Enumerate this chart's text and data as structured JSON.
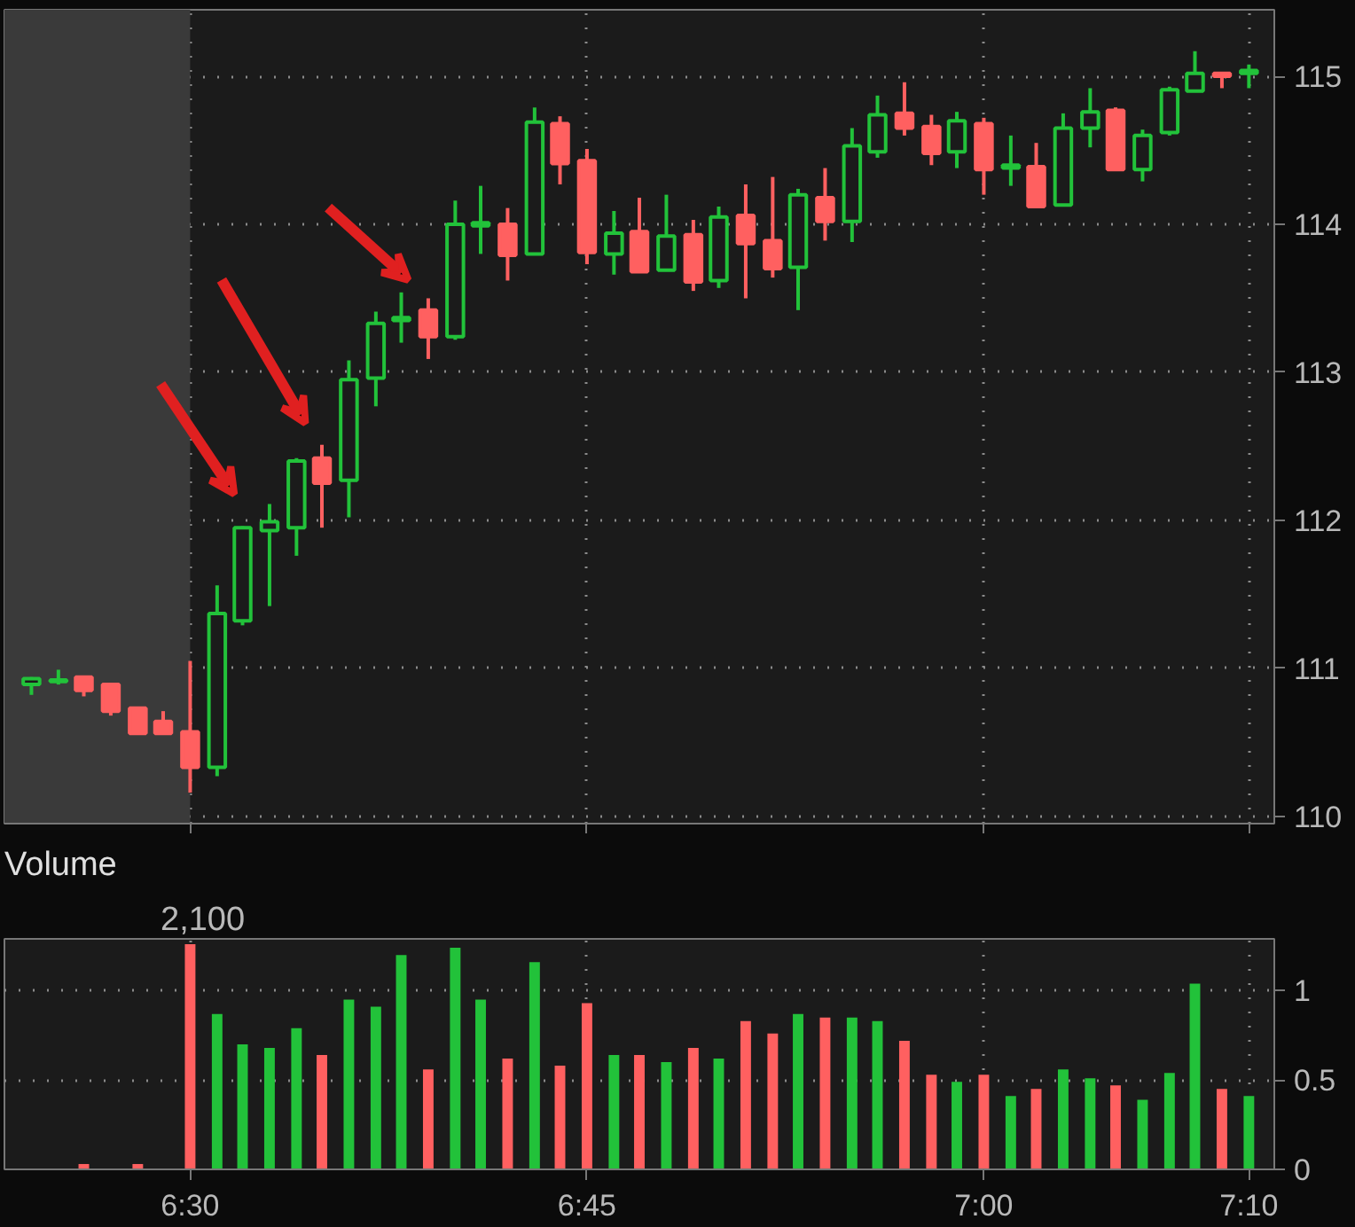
{
  "chart_data": [
    {
      "type": "candlestick",
      "x": [
        6.4,
        6.417,
        6.433,
        6.45,
        6.467,
        6.483,
        6.5,
        6.517,
        6.533,
        6.55,
        6.567,
        6.583,
        6.6,
        6.617,
        6.633,
        6.65,
        6.667,
        6.683,
        6.7,
        6.717,
        6.733,
        6.75,
        6.767,
        6.783,
        6.8,
        6.817,
        6.833,
        6.85,
        6.867,
        6.883,
        6.9,
        6.917,
        6.933,
        6.95,
        6.967,
        6.983,
        7.0,
        7.017,
        7.033,
        7.05,
        7.067,
        7.083,
        7.1,
        7.117,
        7.133,
        7.15,
        7.167
      ],
      "ohlc": [
        [
          110.89,
          110.94,
          110.82,
          110.93
        ],
        [
          110.91,
          110.99,
          110.89,
          110.92
        ],
        [
          110.94,
          110.95,
          110.81,
          110.85
        ],
        [
          110.89,
          110.89,
          110.68,
          110.71
        ],
        [
          110.73,
          110.73,
          110.56,
          110.56
        ],
        [
          110.64,
          110.71,
          110.56,
          110.56
        ],
        [
          110.57,
          111.05,
          110.16,
          110.33
        ],
        [
          110.33,
          111.56,
          110.27,
          111.37
        ],
        [
          111.32,
          111.96,
          111.29,
          111.95
        ],
        [
          111.93,
          112.11,
          111.42,
          111.99
        ],
        [
          111.95,
          112.42,
          111.76,
          112.4
        ],
        [
          112.42,
          112.51,
          111.95,
          112.25
        ],
        [
          112.27,
          113.08,
          112.02,
          112.95
        ],
        [
          112.96,
          113.41,
          112.77,
          113.33
        ],
        [
          113.35,
          113.54,
          113.2,
          113.37
        ],
        [
          113.42,
          113.5,
          113.09,
          113.24
        ],
        [
          113.24,
          114.16,
          113.22,
          114.0
        ],
        [
          113.99,
          114.26,
          113.8,
          114.01
        ],
        [
          114.0,
          114.11,
          113.62,
          113.79
        ],
        [
          113.8,
          114.79,
          113.8,
          114.69
        ],
        [
          114.68,
          114.73,
          114.27,
          114.41
        ],
        [
          114.43,
          114.51,
          113.73,
          113.81
        ],
        [
          113.8,
          114.09,
          113.66,
          113.94
        ],
        [
          113.95,
          114.18,
          113.68,
          113.68
        ],
        [
          113.69,
          114.2,
          113.69,
          113.92
        ],
        [
          113.93,
          114.03,
          113.55,
          113.61
        ],
        [
          113.62,
          114.12,
          113.57,
          114.05
        ],
        [
          114.06,
          114.27,
          113.5,
          113.87
        ],
        [
          113.89,
          114.32,
          113.64,
          113.7
        ],
        [
          113.71,
          114.24,
          113.42,
          114.2
        ],
        [
          114.18,
          114.38,
          113.89,
          114.02
        ],
        [
          114.02,
          114.65,
          113.88,
          114.53
        ],
        [
          114.49,
          114.87,
          114.45,
          114.74
        ],
        [
          114.75,
          114.96,
          114.6,
          114.65
        ],
        [
          114.66,
          114.74,
          114.4,
          114.48
        ],
        [
          114.49,
          114.76,
          114.38,
          114.7
        ],
        [
          114.68,
          114.72,
          114.2,
          114.37
        ],
        [
          114.38,
          114.6,
          114.26,
          114.4
        ],
        [
          114.39,
          114.55,
          114.12,
          114.12
        ],
        [
          114.13,
          114.75,
          114.13,
          114.65
        ],
        [
          114.65,
          114.92,
          114.52,
          114.76
        ],
        [
          114.77,
          114.79,
          114.36,
          114.37
        ],
        [
          114.37,
          114.64,
          114.29,
          114.6
        ],
        [
          114.62,
          114.93,
          114.6,
          114.91
        ],
        [
          114.9,
          115.17,
          114.9,
          115.02
        ],
        [
          115.02,
          115.02,
          114.92,
          115.0
        ],
        [
          115.02,
          115.08,
          114.92,
          115.04
        ]
      ],
      "colors": [
        "#22c23a",
        "#22c23a",
        "#ff6060",
        "#ff6060",
        "#ff6060",
        "#ff6060",
        "#ff6060",
        "#22c23a",
        "#22c23a",
        "#22c23a",
        "#22c23a",
        "#ff6060",
        "#22c23a",
        "#22c23a",
        "#22c23a",
        "#ff6060",
        "#22c23a",
        "#22c23a",
        "#ff6060",
        "#22c23a",
        "#ff6060",
        "#ff6060",
        "#22c23a",
        "#ff6060",
        "#22c23a",
        "#ff6060",
        "#22c23a",
        "#ff6060",
        "#ff6060",
        "#22c23a",
        "#ff6060",
        "#22c23a",
        "#22c23a",
        "#ff6060",
        "#ff6060",
        "#22c23a",
        "#ff6060",
        "#22c23a",
        "#ff6060",
        "#22c23a",
        "#22c23a",
        "#ff6060",
        "#22c23a",
        "#22c23a",
        "#22c23a",
        "#ff6060",
        "#22c23a"
      ],
      "xlim": [
        6.383,
        7.183
      ],
      "xticks": [
        {
          "value": 6.5,
          "label": null
        },
        {
          "value": 6.75,
          "label": null
        },
        {
          "value": 7.0,
          "label": null
        },
        {
          "value": 7.167,
          "label": null
        }
      ],
      "ylim": [
        109.95,
        115.45
      ],
      "yticks": [
        110,
        111,
        112,
        113,
        114,
        115
      ],
      "grid": true,
      "tick_labels": "y",
      "bands": [
        {
          "axis": "x",
          "from": 6.383,
          "to": 6.5,
          "color": "#3a3a3a"
        }
      ]
    },
    {
      "type": "bar",
      "title": "Volume",
      "annotations": [
        "2,100"
      ],
      "x": [
        6.4,
        6.417,
        6.433,
        6.45,
        6.467,
        6.483,
        6.5,
        6.517,
        6.533,
        6.55,
        6.567,
        6.583,
        6.6,
        6.617,
        6.633,
        6.65,
        6.667,
        6.683,
        6.7,
        6.717,
        6.733,
        6.75,
        6.767,
        6.783,
        6.8,
        6.817,
        6.833,
        6.85,
        6.867,
        6.883,
        6.9,
        6.917,
        6.933,
        6.95,
        6.967,
        6.983,
        7.0,
        7.017,
        7.033,
        7.05,
        7.067,
        7.083,
        7.1,
        7.117,
        7.133,
        7.15,
        7.167
      ],
      "values": [
        0,
        0,
        0.03,
        0,
        0.03,
        0,
        1.26,
        0.87,
        0.7,
        0.68,
        0.79,
        0.64,
        0.95,
        0.91,
        1.2,
        0.56,
        1.24,
        0.95,
        0.62,
        1.16,
        0.58,
        0.93,
        0.64,
        0.64,
        0.6,
        0.68,
        0.62,
        0.83,
        0.76,
        0.87,
        0.85,
        0.85,
        0.83,
        0.72,
        0.53,
        0.49,
        0.53,
        0.41,
        0.45,
        0.56,
        0.51,
        0.47,
        0.39,
        0.54,
        1.04,
        0.45,
        0.41
      ],
      "colors": [
        "#22c23a",
        "#22c23a",
        "#ff6060",
        "#ff6060",
        "#ff6060",
        "#ff6060",
        "#ff6060",
        "#22c23a",
        "#22c23a",
        "#22c23a",
        "#22c23a",
        "#ff6060",
        "#22c23a",
        "#22c23a",
        "#22c23a",
        "#ff6060",
        "#22c23a",
        "#22c23a",
        "#ff6060",
        "#22c23a",
        "#ff6060",
        "#ff6060",
        "#22c23a",
        "#ff6060",
        "#22c23a",
        "#ff6060",
        "#22c23a",
        "#ff6060",
        "#ff6060",
        "#22c23a",
        "#ff6060",
        "#22c23a",
        "#22c23a",
        "#ff6060",
        "#ff6060",
        "#22c23a",
        "#ff6060",
        "#22c23a",
        "#ff6060",
        "#22c23a",
        "#22c23a",
        "#ff6060",
        "#22c23a",
        "#22c23a",
        "#22c23a",
        "#ff6060",
        "#22c23a"
      ],
      "xlim": [
        6.383,
        7.183
      ],
      "xticks": [
        {
          "value": 6.5,
          "label": "6:30"
        },
        {
          "value": 6.75,
          "label": "6:45"
        },
        {
          "value": 7.0,
          "label": "7:00"
        },
        {
          "value": 7.167,
          "label": "7:10"
        }
      ],
      "ylim": [
        0,
        1.29
      ],
      "yticks": [
        0,
        0.5,
        1
      ],
      "grid": true
    }
  ]
}
